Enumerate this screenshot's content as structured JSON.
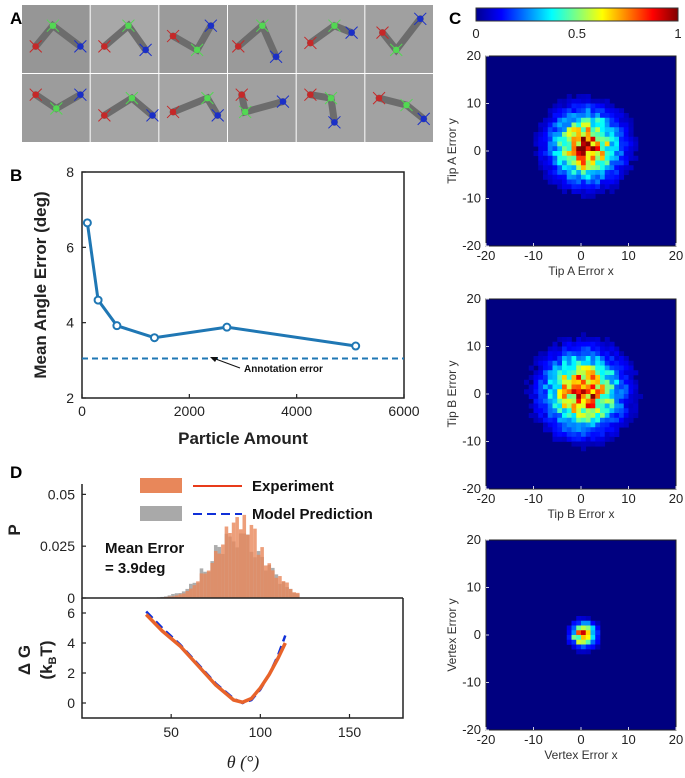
{
  "panel_labels": {
    "a": "A",
    "b": "B",
    "c": "C",
    "d": "D"
  },
  "colors": {
    "line_blue": "#1f77b4",
    "experiment_hist": "#e8875a",
    "model_hist": "#a9a9a9",
    "experiment_line": "#e83b1a",
    "model_line": "#1030d8"
  },
  "panel_a": {
    "kind": "micrograph-grid",
    "rows": 2,
    "cols": 6,
    "markers": [
      "red-tip-marker",
      "green-vertex-marker",
      "blue-tip-marker"
    ]
  },
  "chart_data": [
    {
      "id": "panel-b",
      "type": "line",
      "xlabel": "Particle Amount",
      "ylabel": "Mean Angle Error (deg)",
      "xlim": [
        0,
        6000
      ],
      "ylim": [
        2,
        8
      ],
      "xticks": [
        "0",
        "2000",
        "4000",
        "6000"
      ],
      "yticks": [
        "2",
        "4",
        "6",
        "8"
      ],
      "x": [
        100,
        300,
        650,
        1350,
        2700,
        5100
      ],
      "y": [
        6.65,
        4.6,
        3.92,
        3.6,
        3.88,
        3.38
      ],
      "reference_line": {
        "y": 3.05,
        "style": "dashed"
      },
      "annotation": "Annotation error"
    },
    {
      "id": "panel-c-colorbar",
      "type": "heatmap",
      "colormap": "jet",
      "range": [
        0,
        1
      ],
      "tick_labels": [
        "0",
        "0.5",
        "1"
      ]
    },
    {
      "id": "panel-c-tipA",
      "type": "heatmap",
      "xlabel": "Tip A Error x",
      "ylabel": "Tip A Error y",
      "xlim": [
        -20,
        20
      ],
      "ylim": [
        -20,
        20
      ],
      "xticks": [
        "-20",
        "-10",
        "0",
        "10",
        "20"
      ],
      "yticks": [
        "20",
        "10",
        "0",
        "-10",
        "-20"
      ],
      "center": [
        1,
        1
      ],
      "spread": 4.5
    },
    {
      "id": "panel-c-tipB",
      "type": "heatmap",
      "xlabel": "Tip B Error x",
      "ylabel": "Tip B Error y",
      "xlim": [
        -20,
        20
      ],
      "ylim": [
        -20,
        20
      ],
      "xticks": [
        "-20",
        "-10",
        "0",
        "10",
        "20"
      ],
      "yticks": [
        "20",
        "10",
        "0",
        "-10",
        "-20"
      ],
      "center": [
        0.5,
        0.5
      ],
      "spread": 5.0
    },
    {
      "id": "panel-c-vertex",
      "type": "heatmap",
      "xlabel": "Vertex Error x",
      "ylabel": "Vertex Error y",
      "xlim": [
        -20,
        20
      ],
      "ylim": [
        -20,
        20
      ],
      "xticks": [
        "-20",
        "-10",
        "0",
        "10",
        "20"
      ],
      "yticks": [
        "20",
        "10",
        "0",
        "-10",
        "-20"
      ],
      "center": [
        0.5,
        0
      ],
      "spread": 1.6
    },
    {
      "id": "panel-d-hist",
      "type": "bar",
      "ylabel": "P",
      "xlim": [
        0,
        180
      ],
      "ylim": [
        0,
        0.055
      ],
      "yticks": [
        "0",
        "0.025",
        "0.05"
      ],
      "legend": [
        "Experiment",
        "Model Prediction"
      ],
      "mean_error_text": "Mean Error",
      "mean_error_value": "= 3.9deg",
      "series": [
        {
          "name": "Experiment",
          "peak": 88,
          "sigma": 14,
          "max": 0.035
        },
        {
          "name": "Model Prediction",
          "peak": 86,
          "sigma": 15,
          "max": 0.03
        }
      ]
    },
    {
      "id": "panel-d-energy",
      "type": "line",
      "xlabel": "θ (°)",
      "ylabel": "Δ G (kBT)",
      "xlim": [
        0,
        180
      ],
      "ylim": [
        -1,
        7
      ],
      "xticks": [
        "50",
        "100",
        "150"
      ],
      "yticks": [
        "0",
        "2",
        "4",
        "6"
      ],
      "series": [
        {
          "name": "Experiment",
          "x": [
            36,
            45,
            55,
            65,
            75,
            85,
            90,
            95,
            100,
            105,
            110,
            114
          ],
          "y": [
            5.9,
            4.8,
            3.8,
            2.5,
            1.2,
            0.2,
            0.05,
            0.3,
            1.0,
            1.9,
            3.0,
            4.0
          ]
        },
        {
          "name": "Model Prediction",
          "x": [
            36,
            45,
            55,
            65,
            75,
            85,
            90,
            95,
            100,
            105,
            110,
            114
          ],
          "y": [
            6.1,
            5.0,
            3.9,
            2.6,
            1.3,
            0.3,
            0.0,
            0.2,
            0.9,
            1.9,
            3.2,
            4.5
          ]
        }
      ]
    }
  ]
}
